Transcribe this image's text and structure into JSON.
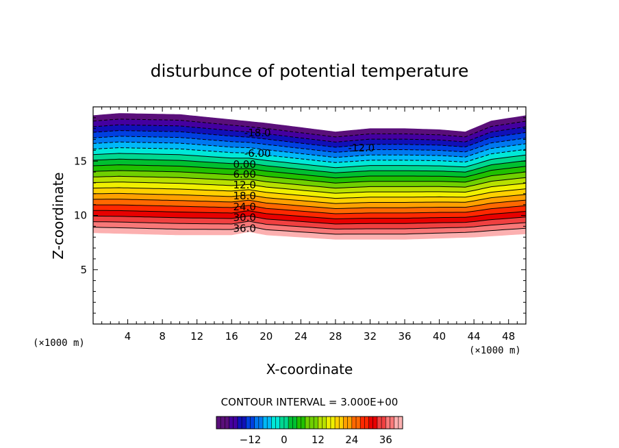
{
  "chart_data": {
    "type": "heatmap",
    "title": "disturbunce of potential temperature",
    "xlabel": "X-coordinate",
    "ylabel": "Z-coordinate",
    "x_unit_left": "(×1000 m)",
    "x_unit_right": "(×1000 m)",
    "xlim": [
      0,
      50
    ],
    "ylim": [
      0,
      20
    ],
    "x_ticks": [
      "4",
      "8",
      "12",
      "16",
      "20",
      "24",
      "28",
      "32",
      "36",
      "40",
      "44",
      "48"
    ],
    "y_ticks": [
      "5",
      "10",
      "15"
    ],
    "contour_interval_text": "CONTOUR INTERVAL = 3.000E+00",
    "contour_levels": [
      -21,
      -18,
      -15,
      -12,
      -9,
      -6,
      -3,
      0,
      3,
      6,
      9,
      12,
      15,
      18,
      21,
      24,
      27,
      30,
      33,
      36,
      39
    ],
    "contour_labels": [
      {
        "text": "-18.0",
        "x": 19,
        "z": 17.6
      },
      {
        "text": "-12.0",
        "x": 31,
        "z": 16.2
      },
      {
        "text": "-6.00",
        "x": 19,
        "z": 15.7
      },
      {
        "text": "0.00",
        "x": 17.5,
        "z": 14.7
      },
      {
        "text": "6.00",
        "x": 17.5,
        "z": 13.8
      },
      {
        "text": "12.0",
        "x": 17.5,
        "z": 12.8
      },
      {
        "text": "18.0",
        "x": 17.5,
        "z": 11.8
      },
      {
        "text": "24.0",
        "x": 17.5,
        "z": 10.8
      },
      {
        "text": "30.0",
        "x": 17.5,
        "z": 9.8
      },
      {
        "text": "36.0",
        "x": 17.5,
        "z": 8.8
      }
    ],
    "layer_top": {
      "x": [
        0,
        3,
        10,
        20,
        28,
        32,
        36,
        40,
        43,
        46,
        50
      ],
      "z": [
        19.2,
        19.4,
        19.3,
        18.5,
        17.7,
        18.0,
        18.0,
        17.9,
        17.7,
        18.7,
        19.2
      ]
    },
    "layer_bottom": {
      "x": [
        0,
        10,
        16,
        18,
        20,
        28,
        36,
        44,
        50
      ],
      "z": [
        8.4,
        8.2,
        8.2,
        8.5,
        8.2,
        7.8,
        7.8,
        8.0,
        8.3
      ]
    },
    "colorbar_ticks": [
      -12,
      0,
      12,
      24,
      36
    ],
    "colorbar_range": [
      -24,
      42
    ],
    "grid": false
  },
  "colors": {
    "palette": [
      "#5a0f7a",
      "#4400a0",
      "#1010b8",
      "#0040e0",
      "#0078f0",
      "#00b8f8",
      "#00e8d8",
      "#00d890",
      "#00c030",
      "#20c000",
      "#70d000",
      "#b8e000",
      "#f0f000",
      "#ffd000",
      "#ffa000",
      "#ff6800",
      "#ff2800",
      "#e80000",
      "#f04040",
      "#f87878",
      "#fcb0b0"
    ]
  }
}
